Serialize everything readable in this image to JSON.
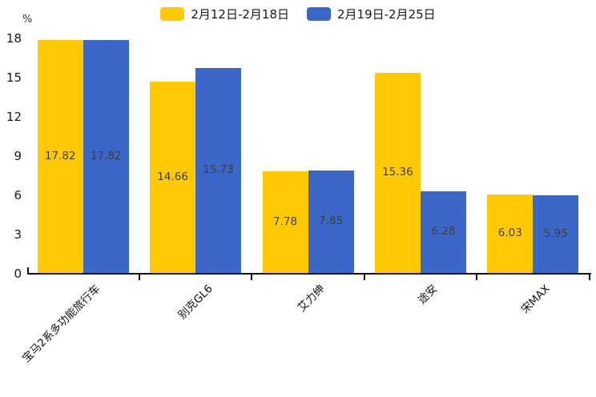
{
  "chart_data": {
    "type": "bar",
    "title": "",
    "unit_label": "%",
    "categories": [
      "宝马2系多功能旅行车",
      "别克GL6",
      "艾力绅",
      "途安",
      "宋MAX"
    ],
    "series": [
      {
        "name": "2月12日-2月18日",
        "color": "#FFC903",
        "values": [
          17.82,
          14.66,
          7.78,
          15.36,
          6.03
        ]
      },
      {
        "name": "2月19日-2月25日",
        "color": "#3B68C8",
        "values": [
          17.82,
          15.73,
          7.85,
          6.28,
          5.95
        ]
      }
    ],
    "ylim": [
      0,
      18
    ],
    "yticks": [
      0,
      3,
      6,
      9,
      12,
      15,
      18
    ],
    "grid": false,
    "legend_position": "top-center",
    "bar_label_color": "#3d3d3d",
    "axis_color": "#111111"
  }
}
